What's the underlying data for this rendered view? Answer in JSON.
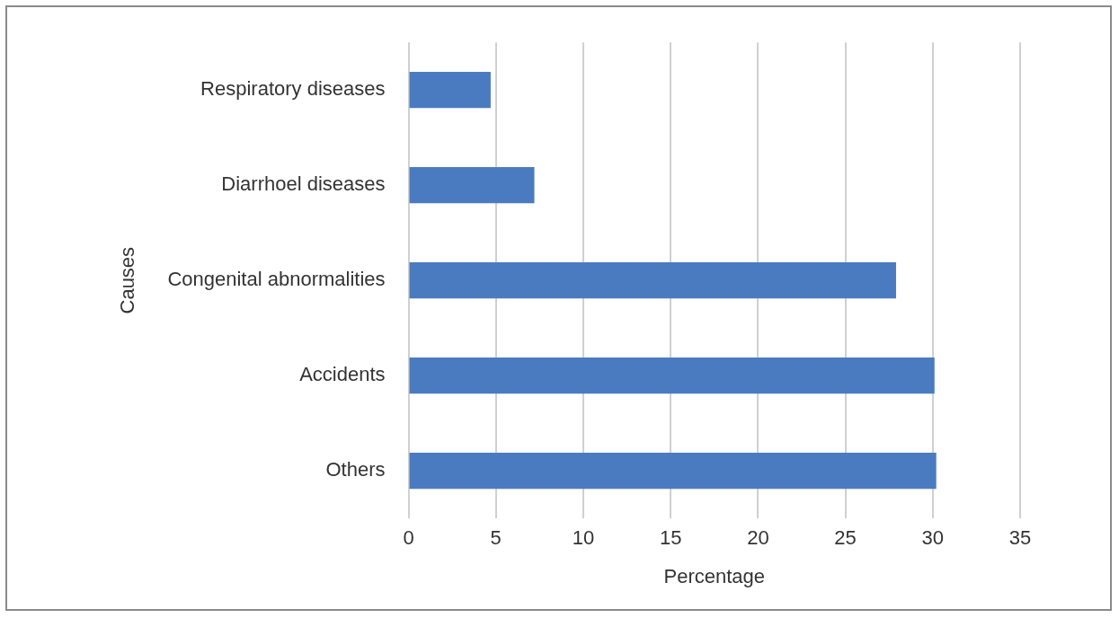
{
  "chart_data": {
    "type": "bar",
    "orientation": "horizontal",
    "xlabel": "Percentage",
    "ylabel": "Causes",
    "categories": [
      "Respiratory diseases",
      "Diarrhoel diseases",
      "Congenital abnormalities",
      "Accidents",
      "Others"
    ],
    "values": [
      4.7,
      7.2,
      27.9,
      30.1,
      30.2
    ],
    "color": "#4a7bc0",
    "xlim": [
      0,
      35
    ],
    "xticks": [
      0,
      5,
      10,
      15,
      20,
      25,
      30,
      35
    ],
    "grid": "x",
    "legend": false
  }
}
